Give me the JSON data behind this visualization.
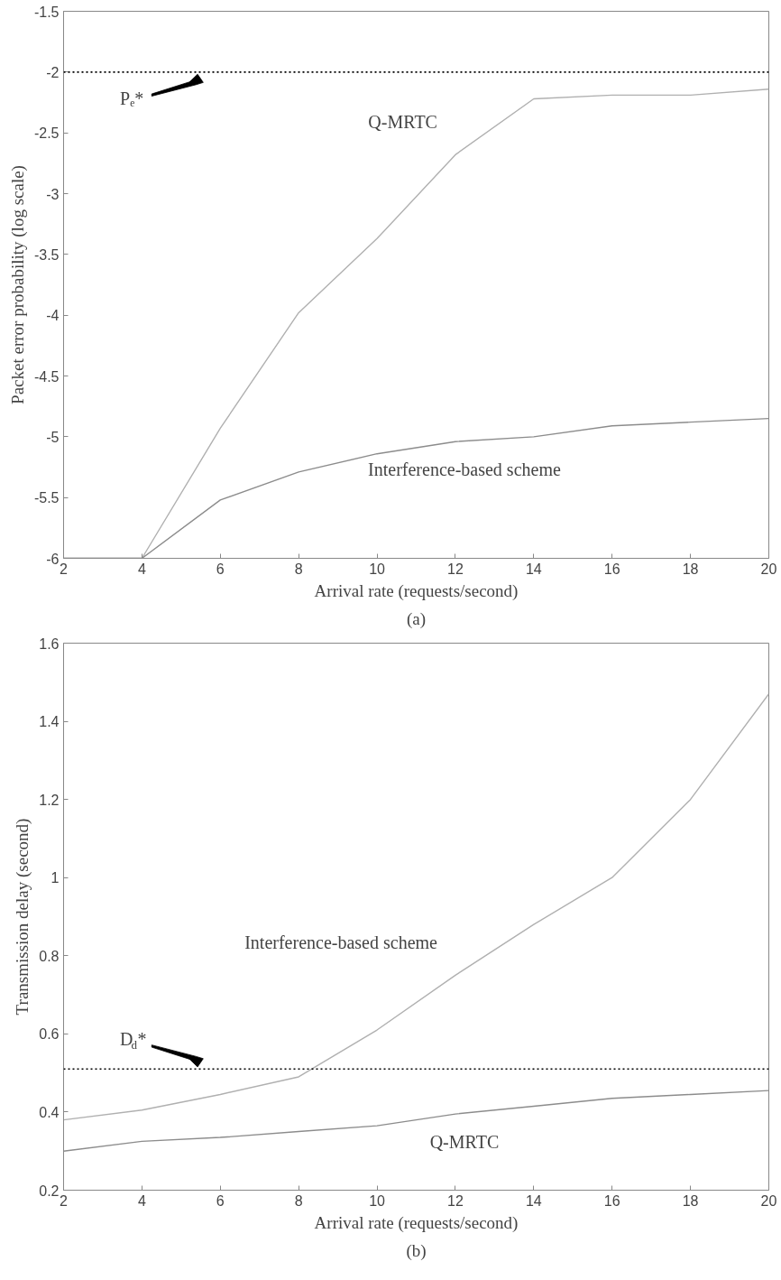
{
  "chart_data": [
    {
      "type": "line",
      "xlabel": "Arrival rate (requests/second)",
      "ylabel": "Packet error probability (log scale)",
      "x": [
        2,
        4,
        6,
        8,
        10,
        12,
        14,
        16,
        18,
        20
      ],
      "series": [
        {
          "name": "Q-MRTC",
          "color": "#b0b0b0",
          "values": [
            -6,
            -6,
            -4.93,
            -3.98,
            -3.37,
            -2.68,
            -2.22,
            -2.19,
            -2.19,
            -2.14
          ]
        },
        {
          "name": "Interference-based scheme",
          "color": "#8c8c8c",
          "values": [
            -6,
            -6,
            -5.52,
            -5.29,
            -5.14,
            -5.04,
            -5.0,
            -4.91,
            -4.88,
            -4.85
          ]
        }
      ],
      "xlim": [
        2,
        20
      ],
      "xticks": [
        2,
        4,
        6,
        8,
        10,
        12,
        14,
        16,
        18,
        20
      ],
      "ylim": [
        -6,
        -1.5
      ],
      "yticks": [
        -6,
        -5.5,
        -5,
        -4.5,
        -4,
        -3.5,
        -3,
        -2.5,
        -2,
        -1.5
      ],
      "ref_lines": [
        {
          "axis": "y",
          "value": -2,
          "label": "Pₑ*",
          "color": "#000000",
          "line_style": "dotted"
        }
      ],
      "annotations": [
        "(a)"
      ],
      "grid": false,
      "legend": false,
      "marker": "none",
      "line_style": "solid"
    },
    {
      "type": "line",
      "xlabel": "Arrival rate (requests/second)",
      "ylabel": "Transmission delay (second)",
      "x": [
        2,
        4,
        6,
        8,
        10,
        12,
        14,
        16,
        18,
        20
      ],
      "series": [
        {
          "name": "Interference-based scheme",
          "color": "#b0b0b0",
          "values": [
            0.38,
            0.405,
            0.445,
            0.49,
            0.61,
            0.75,
            0.88,
            1.0,
            1.2,
            1.47
          ]
        },
        {
          "name": "Q-MRTC",
          "color": "#8c8c8c",
          "values": [
            0.3,
            0.325,
            0.335,
            0.35,
            0.365,
            0.395,
            0.415,
            0.435,
            0.445,
            0.455
          ]
        }
      ],
      "xlim": [
        2,
        20
      ],
      "xticks": [
        2,
        4,
        6,
        8,
        10,
        12,
        14,
        16,
        18,
        20
      ],
      "ylim": [
        0.2,
        1.6
      ],
      "yticks": [
        0.2,
        0.4,
        0.6,
        0.8,
        1,
        1.2,
        1.4,
        1.6
      ],
      "ref_lines": [
        {
          "axis": "y",
          "value": 0.51,
          "label": "D$_{d}$*",
          "color": "#000000",
          "line_style": "dotted"
        }
      ],
      "annotations": [
        "(b)"
      ],
      "grid": false,
      "legend": false,
      "marker": "none",
      "line_style": "solid"
    }
  ]
}
